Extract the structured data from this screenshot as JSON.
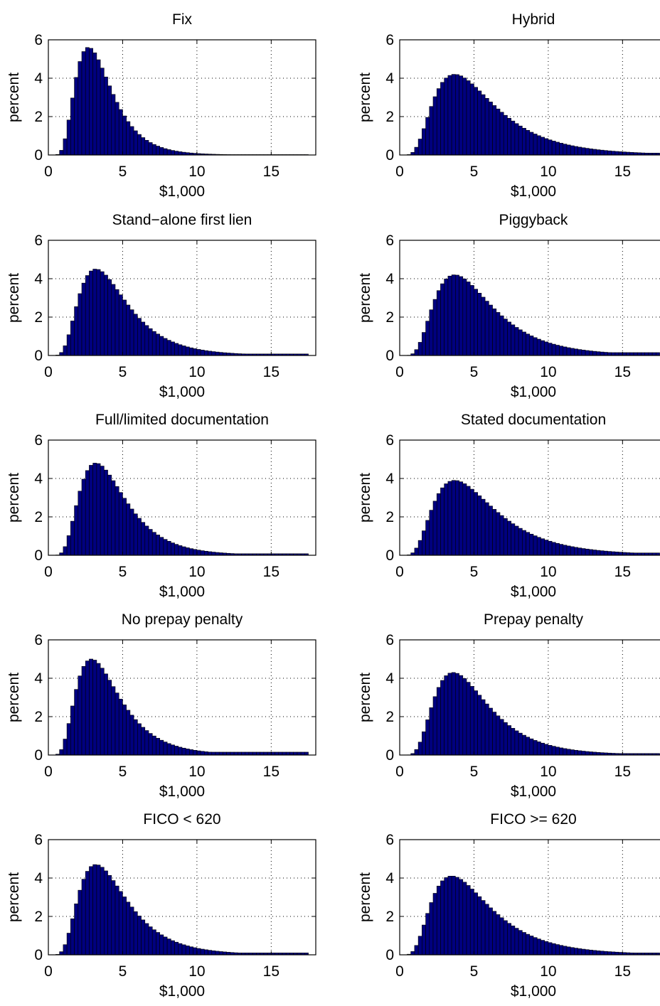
{
  "colors": {
    "bar_fill": "#00007f",
    "bar_edge": "#000000",
    "axes": "#000000",
    "grid": "#000000"
  },
  "common": {
    "type": "bar",
    "xlabel": "$1,000",
    "ylabel": "percent",
    "xlim": [
      0,
      18
    ],
    "ylim": [
      0,
      6
    ],
    "xticks": [
      0,
      5,
      10,
      15
    ],
    "yticks": [
      0,
      2,
      4,
      6
    ],
    "grid": true,
    "bin_width": 0.25
  },
  "chart_data": [
    {
      "type": "bar",
      "title": "Fix",
      "mode": 2.7,
      "peak": 5.6,
      "sigma": 0.45,
      "tail_end": 0.02
    },
    {
      "type": "bar",
      "title": "Hybrid",
      "mode": 3.7,
      "peak": 4.2,
      "sigma": 0.55,
      "tail_end": 0.1
    },
    {
      "type": "bar",
      "title": "Stand−alone first lien",
      "mode": 3.2,
      "peak": 4.5,
      "sigma": 0.5,
      "tail_end": 0.08
    },
    {
      "type": "bar",
      "title": "Piggyback",
      "mode": 3.7,
      "peak": 4.2,
      "sigma": 0.52,
      "tail_end": 0.15
    },
    {
      "type": "bar",
      "title": "Full/limited documentation",
      "mode": 3.2,
      "peak": 4.8,
      "sigma": 0.48,
      "tail_end": 0.08
    },
    {
      "type": "bar",
      "title": "Stated documentation",
      "mode": 3.7,
      "peak": 3.9,
      "sigma": 0.55,
      "tail_end": 0.12
    },
    {
      "type": "bar",
      "title": "No prepay penalty",
      "mode": 2.9,
      "peak": 5.0,
      "sigma": 0.5,
      "tail_end": 0.15
    },
    {
      "type": "bar",
      "title": "Prepay penalty",
      "mode": 3.6,
      "peak": 4.3,
      "sigma": 0.5,
      "tail_end": 0.08
    },
    {
      "type": "bar",
      "title": "FICO < 620",
      "mode": 3.2,
      "peak": 4.7,
      "sigma": 0.5,
      "tail_end": 0.1
    },
    {
      "type": "bar",
      "title": "FICO >= 620",
      "mode": 3.5,
      "peak": 4.1,
      "sigma": 0.55,
      "tail_end": 0.1
    }
  ]
}
